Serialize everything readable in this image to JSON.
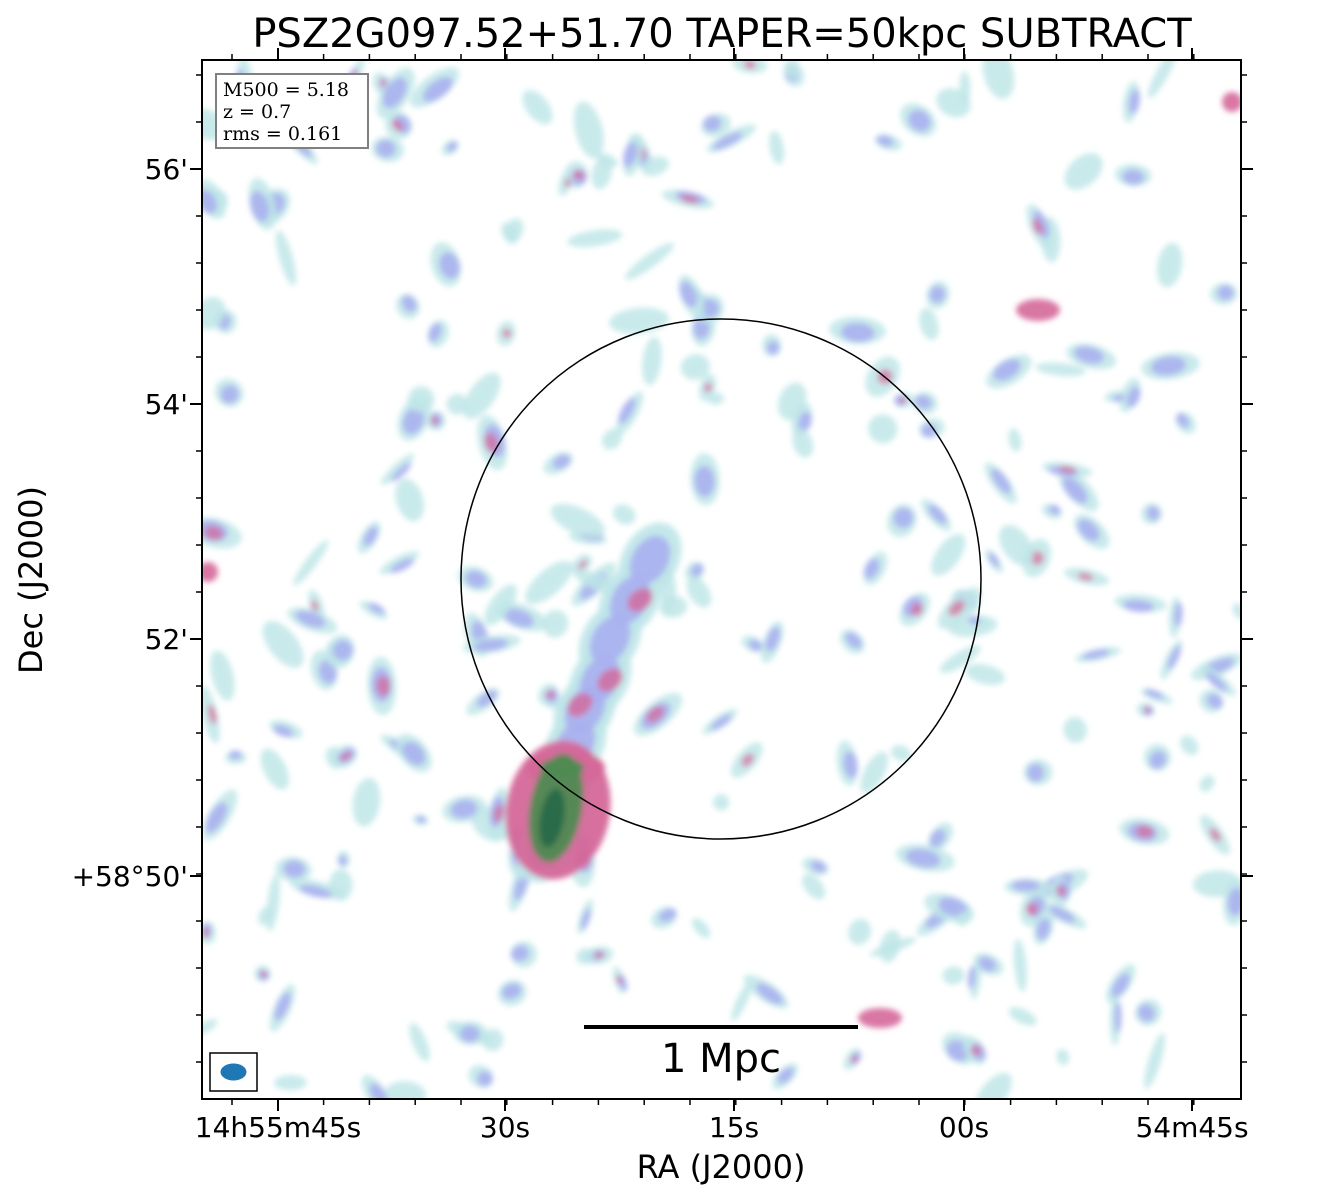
{
  "title": "PSZ2G097.52+51.70 TAPER=50kpc SUBTRACT",
  "axes": {
    "xlabel": "RA (J2000)",
    "ylabel": "Dec (J2000)",
    "xticks": [
      "14h55m45s",
      "30s",
      "15s",
      "00s",
      "54m45s"
    ],
    "yticks": [
      "56'",
      "54'",
      "52'",
      "+58°50'"
    ]
  },
  "info_box": {
    "m500": "M500 = 5.18",
    "z": "z = 0.7",
    "rms": "rms = 0.161"
  },
  "scale_bar": {
    "label": "1 Mpc"
  },
  "colors": {
    "low": "#bfe6e8",
    "mid": "#a9aff0",
    "high": "#d5689a",
    "peak": "#2a6a4a",
    "beam": "#1f77b4"
  },
  "icons": {
    "beam": "beam-ellipse-icon",
    "aperture": "r500-circle"
  }
}
